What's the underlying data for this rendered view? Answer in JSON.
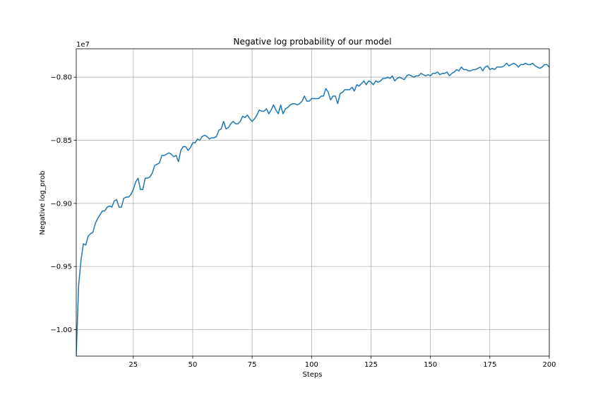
{
  "chart_data": {
    "type": "line",
    "title": "Negative log probability of our model",
    "xlabel": "Steps",
    "ylabel": "Negative log_prob",
    "offset_label": "1e7",
    "xlim": [
      1,
      200
    ],
    "ylim": [
      -1.021,
      -0.7775
    ],
    "grid": true,
    "x_ticks": [
      25,
      50,
      75,
      100,
      125,
      150,
      175,
      200
    ],
    "y_ticks": [
      -1.0,
      -0.95,
      -0.9,
      -0.85,
      -0.8
    ],
    "y_tick_labels": [
      "−1.00",
      "−0.95",
      "−0.90",
      "−0.85",
      "−0.80"
    ],
    "series": [
      {
        "color": "#1f77b4",
        "x_start": 1,
        "x_step": 1,
        "y": [
          -1.02,
          -0.965,
          -0.945,
          -0.932,
          -0.933,
          -0.926,
          -0.924,
          -0.923,
          -0.916,
          -0.912,
          -0.909,
          -0.906,
          -0.906,
          -0.903,
          -0.902,
          -0.903,
          -0.898,
          -0.897,
          -0.903,
          -0.903,
          -0.896,
          -0.895,
          -0.895,
          -0.893,
          -0.889,
          -0.883,
          -0.88,
          -0.889,
          -0.889,
          -0.88,
          -0.88,
          -0.879,
          -0.876,
          -0.87,
          -0.869,
          -0.868,
          -0.862,
          -0.862,
          -0.861,
          -0.86,
          -0.861,
          -0.863,
          -0.862,
          -0.867,
          -0.858,
          -0.855,
          -0.855,
          -0.858,
          -0.856,
          -0.852,
          -0.852,
          -0.849,
          -0.85,
          -0.847,
          -0.846,
          -0.847,
          -0.849,
          -0.848,
          -0.848,
          -0.847,
          -0.842,
          -0.841,
          -0.835,
          -0.841,
          -0.84,
          -0.837,
          -0.835,
          -0.837,
          -0.837,
          -0.835,
          -0.831,
          -0.832,
          -0.83,
          -0.833,
          -0.835,
          -0.833,
          -0.83,
          -0.826,
          -0.827,
          -0.827,
          -0.825,
          -0.829,
          -0.826,
          -0.822,
          -0.826,
          -0.829,
          -0.822,
          -0.829,
          -0.825,
          -0.824,
          -0.822,
          -0.821,
          -0.821,
          -0.822,
          -0.821,
          -0.819,
          -0.815,
          -0.819,
          -0.819,
          -0.817,
          -0.817,
          -0.817,
          -0.817,
          -0.815,
          -0.815,
          -0.809,
          -0.812,
          -0.818,
          -0.815,
          -0.815,
          -0.821,
          -0.813,
          -0.812,
          -0.81,
          -0.81,
          -0.81,
          -0.808,
          -0.811,
          -0.806,
          -0.807,
          -0.805,
          -0.803,
          -0.806,
          -0.803,
          -0.804,
          -0.806,
          -0.803,
          -0.804,
          -0.803,
          -0.801,
          -0.801,
          -0.8,
          -0.801,
          -0.799,
          -0.803,
          -0.801,
          -0.8,
          -0.801,
          -0.802,
          -0.799,
          -0.798,
          -0.799,
          -0.8,
          -0.799,
          -0.799,
          -0.797,
          -0.798,
          -0.799,
          -0.798,
          -0.799,
          -0.797,
          -0.797,
          -0.796,
          -0.798,
          -0.797,
          -0.797,
          -0.796,
          -0.799,
          -0.797,
          -0.796,
          -0.794,
          -0.795,
          -0.792,
          -0.794,
          -0.794,
          -0.795,
          -0.795,
          -0.794,
          -0.794,
          -0.793,
          -0.792,
          -0.795,
          -0.792,
          -0.791,
          -0.794,
          -0.793,
          -0.794,
          -0.792,
          -0.792,
          -0.792,
          -0.791,
          -0.789,
          -0.791,
          -0.79,
          -0.789,
          -0.79,
          -0.792,
          -0.79,
          -0.79,
          -0.789,
          -0.79,
          -0.79,
          -0.789,
          -0.791,
          -0.792,
          -0.793,
          -0.792,
          -0.79,
          -0.79,
          -0.792
        ]
      }
    ]
  }
}
